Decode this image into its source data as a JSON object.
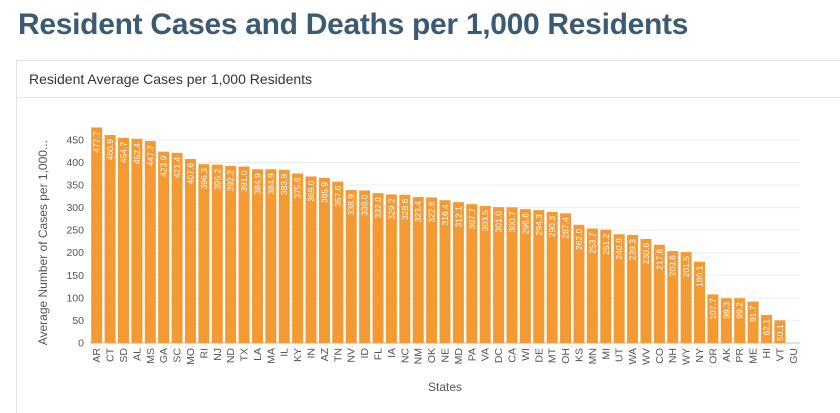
{
  "page": {
    "title": "Resident Cases and Deaths per 1,000 Residents"
  },
  "card": {
    "title": "Resident Average Cases per 1,000 Residents"
  },
  "chart_data": {
    "type": "bar",
    "title": "Resident Average Cases per 1,000 Residents",
    "xlabel": "States",
    "ylabel": "Average Number of Cases per 1,000...",
    "ylim": [
      0,
      480
    ],
    "yticks": [
      0,
      50,
      100,
      150,
      200,
      250,
      300,
      350,
      400,
      450
    ],
    "grid": true,
    "bar_color": "#f39a35",
    "categories": [
      "AR",
      "CT",
      "SD",
      "AL",
      "MS",
      "GA",
      "SC",
      "MO",
      "RI",
      "NJ",
      "ND",
      "TX",
      "LA",
      "MA",
      "IL",
      "KY",
      "IN",
      "AZ",
      "TN",
      "NV",
      "ID",
      "FL",
      "IA",
      "NC",
      "NM",
      "OK",
      "NE",
      "MD",
      "PA",
      "VA",
      "DC",
      "CA",
      "WI",
      "DE",
      "MT",
      "OH",
      "KS",
      "MN",
      "MI",
      "UT",
      "WA",
      "WV",
      "CO",
      "NH",
      "WY",
      "NY",
      "OR",
      "AK",
      "PR",
      "ME",
      "HI",
      "VT",
      "GU"
    ],
    "values": [
      477.7,
      460.9,
      454.7,
      452.4,
      447.7,
      423.9,
      421.4,
      407.6,
      396.3,
      395.2,
      392.2,
      391.0,
      384.9,
      384.9,
      383.9,
      375.6,
      369.0,
      365.9,
      357.6,
      338.9,
      338.0,
      332.0,
      329.2,
      328.6,
      323.4,
      322.6,
      316.4,
      312.1,
      307.7,
      303.5,
      301.0,
      300.7,
      296.6,
      294.3,
      290.3,
      287.4,
      262.0,
      253.7,
      251.2,
      240.9,
      239.3,
      230.6,
      217.8,
      203.6,
      201.5,
      180.1,
      107.7,
      99.3,
      99.2,
      91.7,
      62.1,
      50.1,
      0
    ],
    "labels": [
      "477.7",
      "460.9",
      "454.7",
      "452.4",
      "447.7",
      "423.9",
      "421.4",
      "407.6",
      "396.3",
      "395.2",
      "392.2",
      "391.0",
      "384.9",
      "384.9",
      "383.9",
      "375.6",
      "369.0",
      "365.9",
      "357.6",
      "338.9",
      "338.0",
      "332.0",
      "329.2",
      "328.6",
      "323.4",
      "322.6",
      "316.4",
      "312.1",
      "307.7",
      "303.5",
      "301.0",
      "300.7",
      "296.6",
      "294.3",
      "290.3",
      "287.4",
      "262.0",
      "253.7",
      "251.2",
      "240.9",
      "239.3",
      "230.6",
      "217.8",
      "203.6",
      "201.5",
      "180.1",
      "107.7",
      "99.3",
      "99.2",
      "91.7",
      "62.1",
      "50.1",
      ""
    ]
  }
}
